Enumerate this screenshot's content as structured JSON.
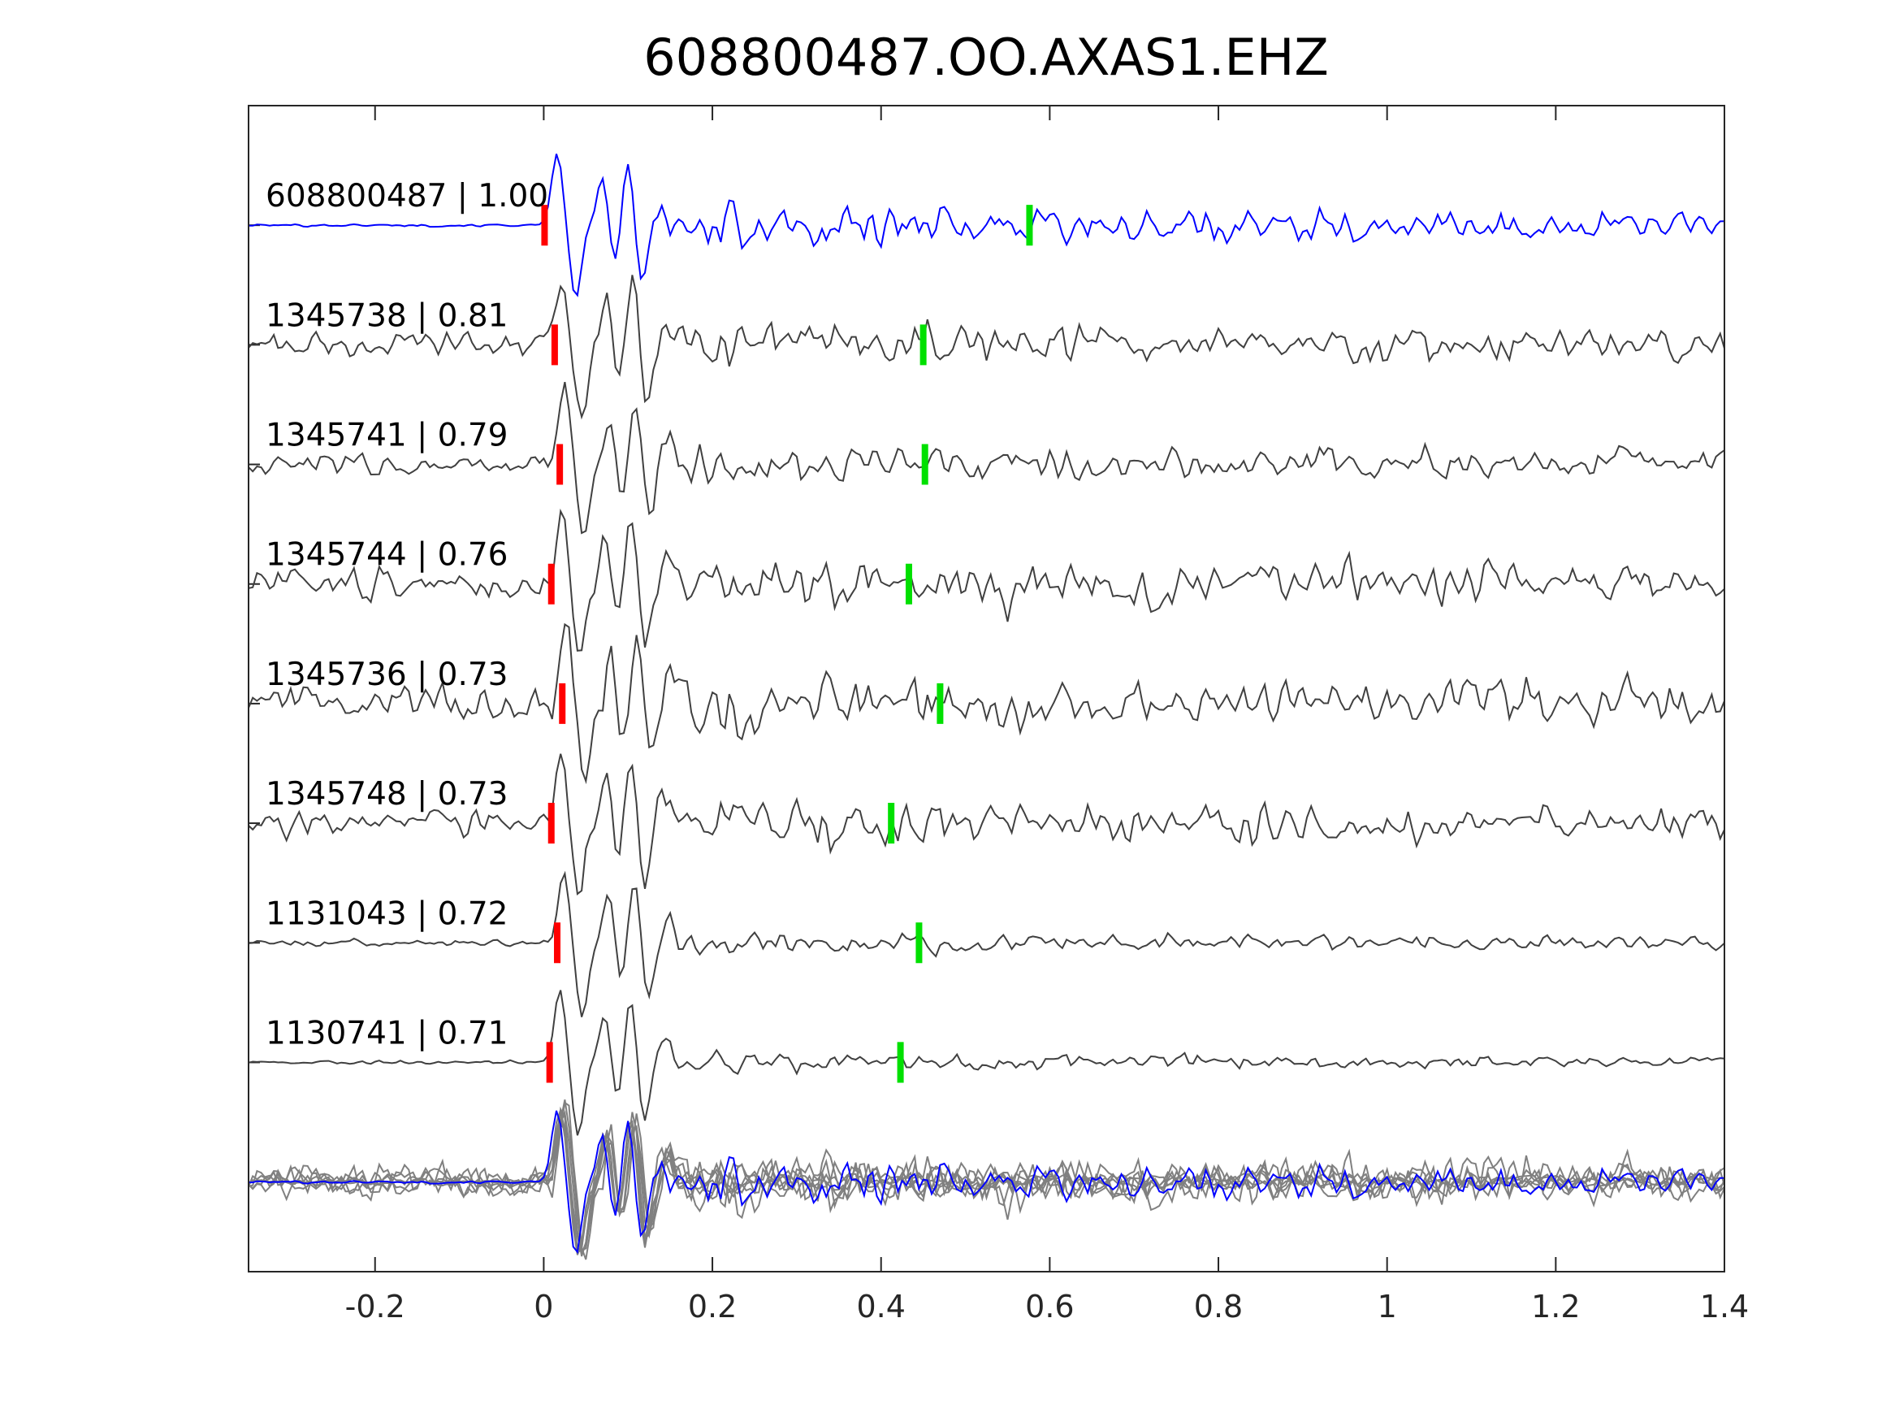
{
  "chart_data": {
    "type": "line",
    "title": "608800487.OO.AXAS1.EHZ",
    "xlabel": "",
    "ylabel": "",
    "xlim": [
      -0.35,
      1.4
    ],
    "ylim": [
      -0.75,
      9.0
    ],
    "xticks": [
      -0.2,
      0,
      0.2,
      0.4,
      0.6,
      0.8,
      1,
      1.2,
      1.4
    ],
    "xtick_labels": [
      "-0.2",
      "0",
      "0.2",
      "0.4",
      "0.6",
      "0.8",
      "1",
      "1.2",
      "1.4"
    ],
    "grid": false,
    "sample_interval_s": 0.005,
    "traces": [
      {
        "id": "608800487",
        "cc": "1.00",
        "label": "608800487 | 1.00",
        "offset": 8,
        "color": "#0000ff",
        "noise": 0.015,
        "coda": 0.28,
        "p_pick": 0.001,
        "s_pick": 0.576
      },
      {
        "id": "1345738",
        "cc": "0.81",
        "label": "1345738 | 0.81",
        "offset": 7,
        "color": "#404040",
        "noise": 0.16,
        "coda": 0.2,
        "p_pick": 0.013,
        "s_pick": 0.45
      },
      {
        "id": "1345741",
        "cc": "0.79",
        "label": "1345741 | 0.79",
        "offset": 6,
        "color": "#404040",
        "noise": 0.13,
        "coda": 0.2,
        "p_pick": 0.019,
        "s_pick": 0.452
      },
      {
        "id": "1345744",
        "cc": "0.76",
        "label": "1345744 | 0.76",
        "offset": 5,
        "color": "#404040",
        "noise": 0.18,
        "coda": 0.22,
        "p_pick": 0.009,
        "s_pick": 0.433
      },
      {
        "id": "1345736",
        "cc": "0.73",
        "label": "1345736 | 0.73",
        "offset": 4,
        "color": "#404040",
        "noise": 0.2,
        "coda": 0.25,
        "p_pick": 0.022,
        "s_pick": 0.47
      },
      {
        "id": "1345748",
        "cc": "0.73",
        "label": "1345748 | 0.73",
        "offset": 3,
        "color": "#404040",
        "noise": 0.15,
        "coda": 0.2,
        "p_pick": 0.009,
        "s_pick": 0.412
      },
      {
        "id": "1131043",
        "cc": "0.72",
        "label": "1131043 | 0.72",
        "offset": 2,
        "color": "#404040",
        "noise": 0.04,
        "coda": 0.12,
        "p_pick": 0.016,
        "s_pick": 0.445
      },
      {
        "id": "1130741",
        "cc": "0.71",
        "label": "1130741 | 0.71",
        "offset": 1,
        "color": "#404040",
        "noise": 0.02,
        "coda": 0.12,
        "p_pick": 0.007,
        "s_pick": 0.423
      }
    ],
    "stack": {
      "offset": 0,
      "overlay_color": "#808080",
      "template_color": "#0000ff"
    },
    "wavelet_peaks": [
      {
        "t": 0.018,
        "a": 0.6
      },
      {
        "t": 0.04,
        "a": -0.62
      },
      {
        "t": 0.072,
        "a": 0.42
      },
      {
        "t": 0.086,
        "a": -0.35
      },
      {
        "t": 0.102,
        "a": 0.55
      },
      {
        "t": 0.118,
        "a": -0.5
      },
      {
        "t": 0.142,
        "a": 0.25
      }
    ],
    "p_pick_color": "#ff0000",
    "s_pick_color": "#00e000"
  }
}
